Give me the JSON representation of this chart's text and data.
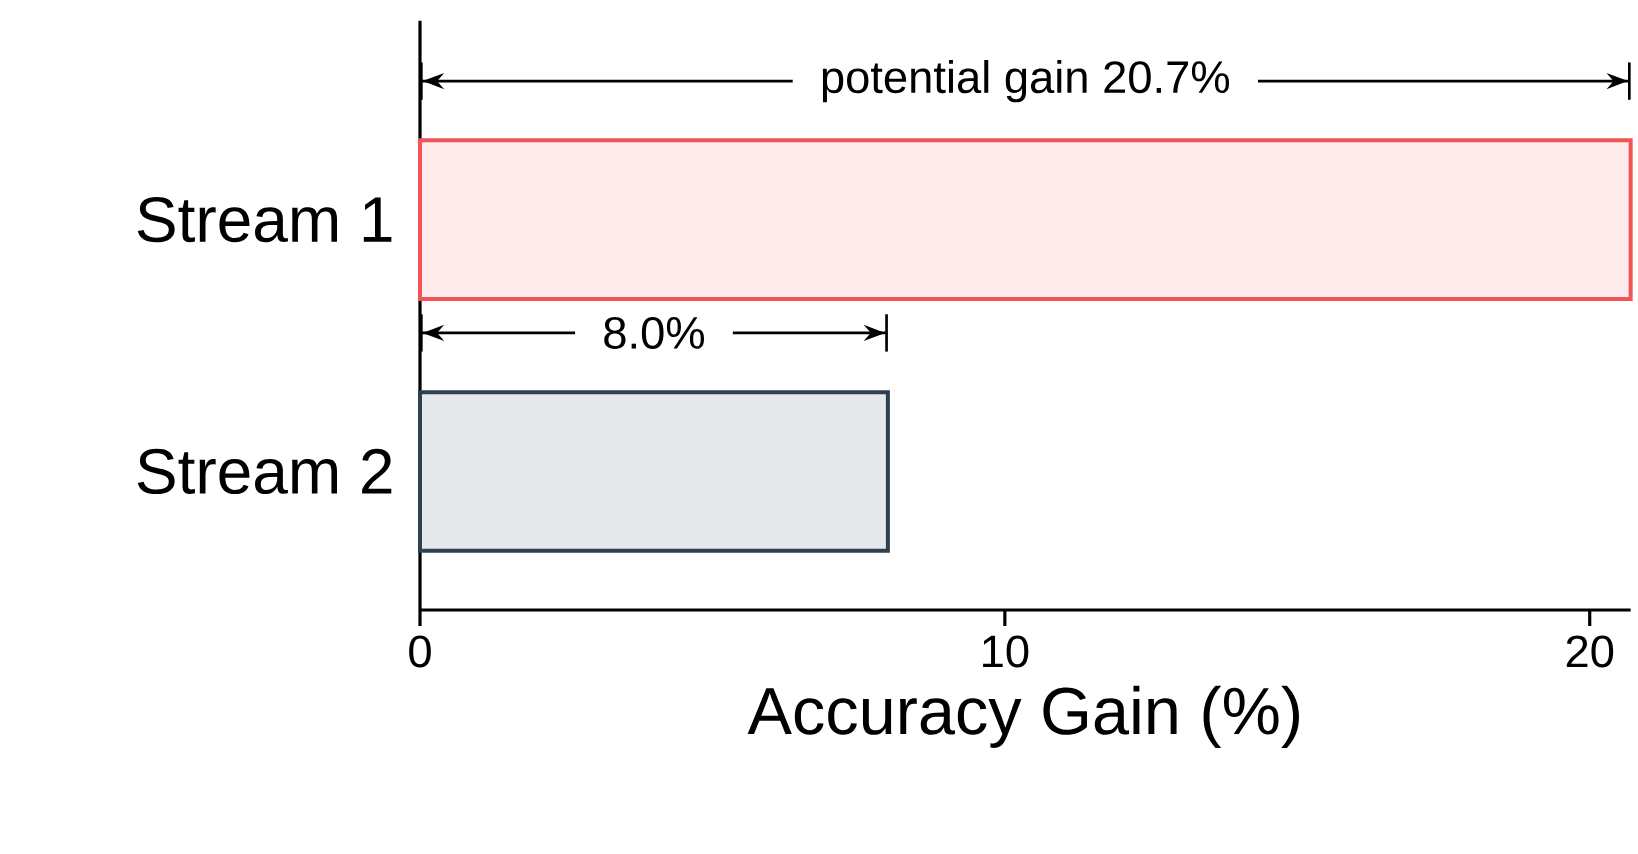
{
  "chart_data": {
    "type": "bar",
    "orientation": "horizontal",
    "xlabel": "Accuracy Gain (%)",
    "categories": [
      "Stream 1",
      "Stream 2"
    ],
    "values": [
      20.7,
      8.0
    ],
    "colors": [
      "#f05454",
      "#2f4050"
    ],
    "xlim": [
      0,
      20.7
    ],
    "xticks": [
      0,
      10,
      20
    ],
    "annotations": [
      "potential gain 20.7%",
      "8.0%"
    ]
  }
}
